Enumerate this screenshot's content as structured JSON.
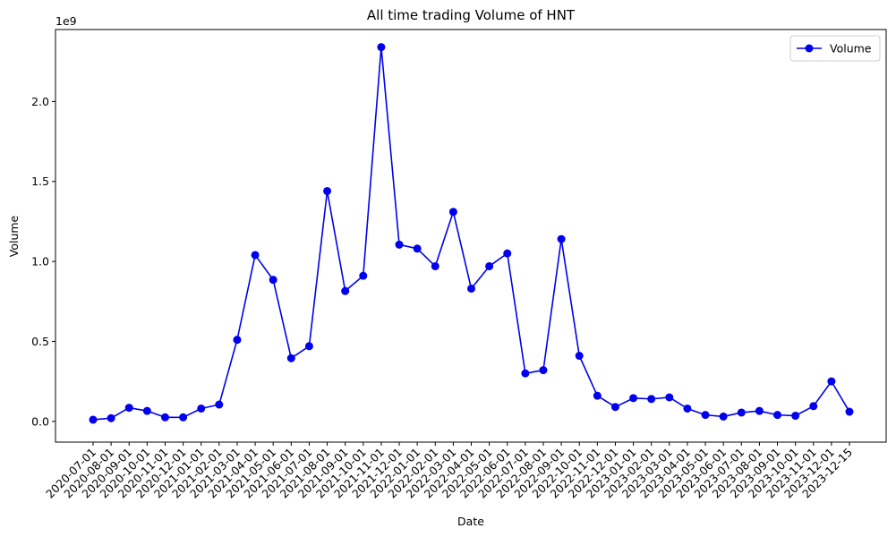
{
  "chart_data": {
    "type": "line",
    "title": "All time trading Volume of HNT",
    "xlabel": "Date",
    "ylabel": "Volume",
    "y_offset_label": "1e9",
    "ylim": [
      -0.13,
      2.45
    ],
    "y_ticks": [
      0.0,
      0.5,
      1.0,
      1.5,
      2.0
    ],
    "y_tick_labels": [
      "0.0",
      "0.5",
      "1.0",
      "1.5",
      "2.0"
    ],
    "grid": false,
    "legend_position": "top-right",
    "colors": {
      "line": "#0000ee",
      "axes": "#000000"
    },
    "categories": [
      "2020-07-01",
      "2020-08-01",
      "2020-09-01",
      "2020-10-01",
      "2020-11-01",
      "2020-12-01",
      "2021-01-01",
      "2021-02-01",
      "2021-03-01",
      "2021-04-01",
      "2021-05-01",
      "2021-06-01",
      "2021-07-01",
      "2021-08-01",
      "2021-09-01",
      "2021-10-01",
      "2021-11-01",
      "2021-12-01",
      "2022-01-01",
      "2022-02-01",
      "2022-03-01",
      "2022-04-01",
      "2022-05-01",
      "2022-06-01",
      "2022-07-01",
      "2022-08-01",
      "2022-09-01",
      "2022-10-01",
      "2022-11-01",
      "2022-12-01",
      "2023-01-01",
      "2023-02-01",
      "2023-03-01",
      "2023-04-01",
      "2023-05-01",
      "2023-06-01",
      "2023-07-01",
      "2023-08-01",
      "2023-09-01",
      "2023-10-01",
      "2023-11-01",
      "2023-12-01",
      "2023-12-15"
    ],
    "series": [
      {
        "name": "Volume",
        "values": [
          0.01,
          0.02,
          0.085,
          0.065,
          0.025,
          0.025,
          0.08,
          0.105,
          0.51,
          1.04,
          0.885,
          0.395,
          0.47,
          1.44,
          0.815,
          0.91,
          2.34,
          1.105,
          1.08,
          0.97,
          1.31,
          0.83,
          0.97,
          1.05,
          0.3,
          0.32,
          1.14,
          0.41,
          0.16,
          0.09,
          0.145,
          0.14,
          0.15,
          0.08,
          0.04,
          0.03,
          0.055,
          0.065,
          0.04,
          0.035,
          0.095,
          0.25,
          0.06
        ]
      }
    ]
  }
}
